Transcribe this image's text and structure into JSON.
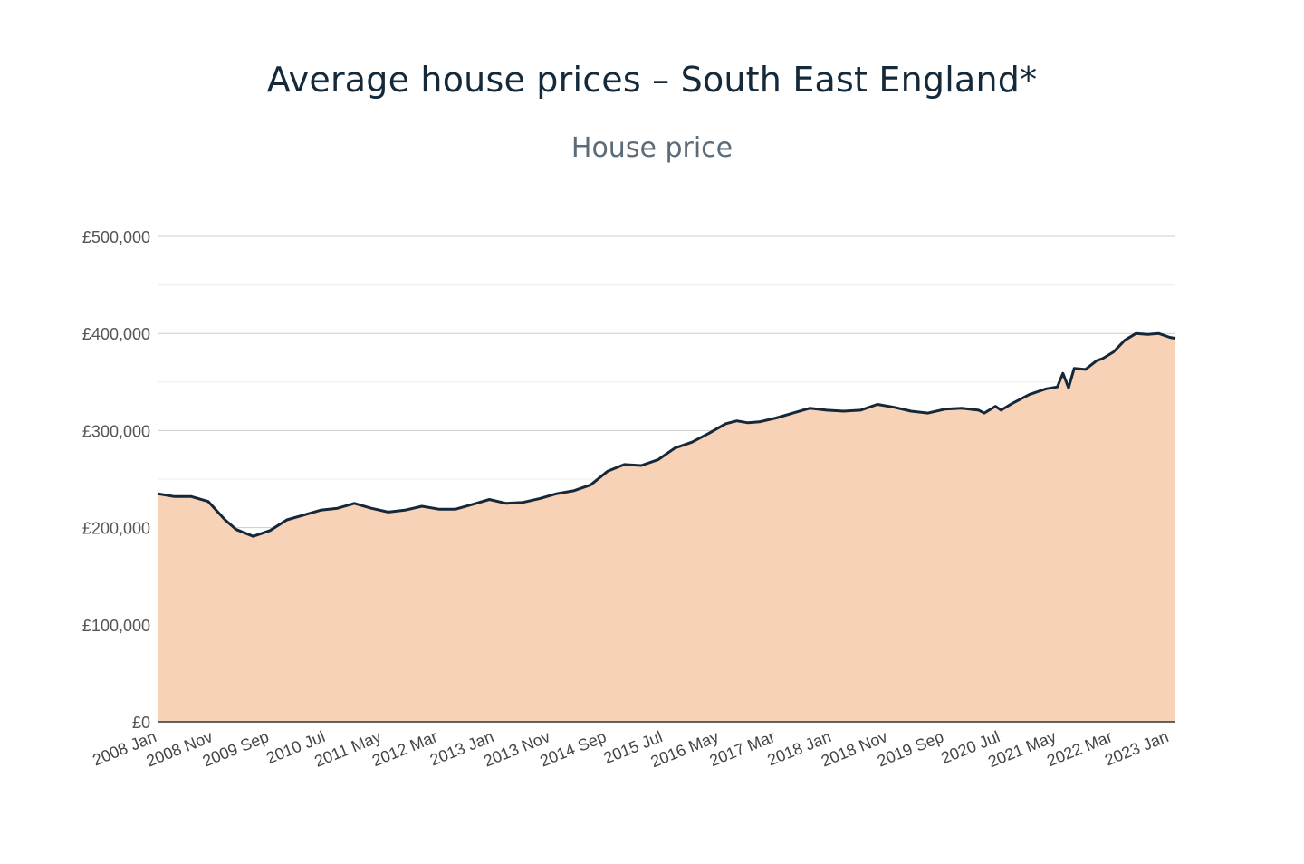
{
  "chart_data": {
    "type": "area",
    "title": "Average house prices – South East England*",
    "subtitle": "House price",
    "xlabel": "",
    "ylabel": "",
    "ylim": [
      0,
      500000
    ],
    "y_ticks": [
      {
        "value": 0,
        "label": "£0"
      },
      {
        "value": 100000,
        "label": "£100,000"
      },
      {
        "value": 200000,
        "label": "£200,000"
      },
      {
        "value": 300000,
        "label": "£300,000"
      },
      {
        "value": 400000,
        "label": "£400,000"
      },
      {
        "value": 500000,
        "label": "£500,000"
      }
    ],
    "x_start": "2008 Jan",
    "x_end": "2023 Feb",
    "x_tick_labels": [
      "2008 Jan",
      "2008 Nov",
      "2009 Sep",
      "2010 Jul",
      "2011 May",
      "2012 Mar",
      "2013 Jan",
      "2013 Nov",
      "2014 Sep",
      "2015 Jul",
      "2016 May",
      "2017 Mar",
      "2018 Jan",
      "2018 Nov",
      "2019 Sep",
      "2020 Jul",
      "2021 May",
      "2022 Mar",
      "2023 Jan"
    ],
    "grid": true,
    "colors": {
      "fill": "#f8d2b6",
      "line": "#15283a",
      "grid": "#cccccc"
    },
    "series": [
      {
        "x": [
          "2008 Jan",
          "2008 Apr",
          "2008 Jul",
          "2008 Oct",
          "2009 Jan",
          "2009 Mar",
          "2009 Jun",
          "2009 Sep",
          "2009 Dec",
          "2010 Mar",
          "2010 Jun",
          "2010 Sep",
          "2010 Dec",
          "2011 Mar",
          "2011 Jun",
          "2011 Sep",
          "2011 Dec",
          "2012 Mar",
          "2012 Jun",
          "2012 Sep",
          "2012 Dec",
          "2013 Mar",
          "2013 Jun",
          "2013 Sep",
          "2013 Dec",
          "2014 Mar",
          "2014 Jun",
          "2014 Sep",
          "2014 Dec",
          "2015 Mar",
          "2015 Jun",
          "2015 Sep",
          "2015 Dec",
          "2016 Mar",
          "2016 Jun",
          "2016 Aug",
          "2016 Oct",
          "2016 Dec",
          "2017 Mar",
          "2017 Jun",
          "2017 Sep",
          "2017 Dec",
          "2018 Mar",
          "2018 Jun",
          "2018 Sep",
          "2018 Dec",
          "2019 Mar",
          "2019 Jun",
          "2019 Sep",
          "2019 Dec",
          "2020 Mar",
          "2020 Apr",
          "2020 Jun",
          "2020 Jul",
          "2020 Sep",
          "2020 Dec",
          "2021 Mar",
          "2021 May",
          "2021 Jun",
          "2021 Jul",
          "2021 Aug",
          "2021 Oct",
          "2021 Dec",
          "2022 Jan",
          "2022 Mar",
          "2022 May",
          "2022 Jul",
          "2022 Sep",
          "2022 Nov",
          "2023 Jan",
          "2023 Feb"
        ],
        "values": [
          235000,
          232000,
          232000,
          227000,
          208000,
          198000,
          191000,
          197000,
          208000,
          213000,
          218000,
          220000,
          225000,
          220000,
          216000,
          218000,
          222000,
          219000,
          219000,
          224000,
          229000,
          225000,
          226000,
          230000,
          235000,
          238000,
          244000,
          258000,
          265000,
          264000,
          270000,
          282000,
          288000,
          297000,
          307000,
          310000,
          308000,
          309000,
          313000,
          318000,
          323000,
          321000,
          320000,
          321000,
          327000,
          324000,
          320000,
          318000,
          322000,
          323000,
          321000,
          318000,
          325000,
          321000,
          328000,
          337000,
          343000,
          345000,
          359000,
          344000,
          364000,
          363000,
          372000,
          374000,
          381000,
          393000,
          400000,
          399000,
          400000,
          396000,
          395000
        ]
      }
    ]
  }
}
